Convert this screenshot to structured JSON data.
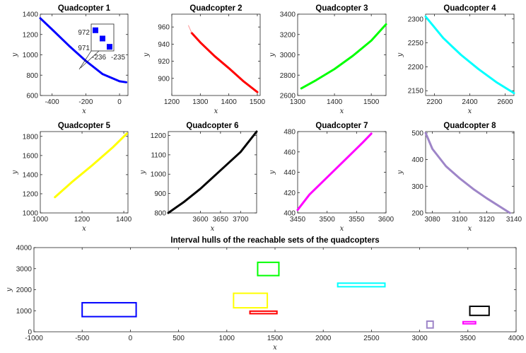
{
  "chart_data": [
    {
      "type": "line",
      "title": "Quadcopter 1",
      "xlabel": "x",
      "ylabel": "y",
      "xlim": [
        -470,
        50
      ],
      "ylim": [
        600,
        1400
      ],
      "xticks": [
        -400,
        -200,
        0
      ],
      "yticks": [
        600,
        800,
        1000,
        1200,
        1400
      ],
      "color": "#0000ff",
      "series": [
        {
          "x": [
            -470,
            -400,
            -300,
            -200,
            -100,
            0,
            40
          ],
          "y": [
            1360,
            1250,
            1090,
            940,
            810,
            740,
            730
          ]
        }
      ],
      "inset": {
        "xticks": [
          "-236",
          "-235"
        ],
        "yticks": [
          "972",
          "971"
        ],
        "points": [
          {
            "x": -236.2,
            "y": 972.3
          },
          {
            "x": -235.7,
            "y": 971.9
          },
          {
            "x": -235.2,
            "y": 971.5
          }
        ]
      }
    },
    {
      "type": "line",
      "title": "Quadcopter 2",
      "xlabel": "x",
      "ylabel": "y",
      "xlim": [
        1200,
        1510
      ],
      "ylim": [
        880,
        975
      ],
      "xticks": [
        1200,
        1300,
        1400,
        1500
      ],
      "yticks": [
        900,
        920,
        940,
        960
      ],
      "color": "#ff0000",
      "series": [
        {
          "x": [
            1270,
            1300,
            1350,
            1400,
            1450,
            1500
          ],
          "y": [
            953,
            942,
            926,
            912,
            897,
            884
          ]
        }
      ]
    },
    {
      "type": "line",
      "title": "Quadcopter 3",
      "xlabel": "x",
      "ylabel": "y",
      "xlim": [
        1300,
        1540
      ],
      "ylim": [
        2600,
        3400
      ],
      "xticks": [
        1300,
        1400,
        1500
      ],
      "yticks": [
        2600,
        2800,
        3000,
        3200,
        3400
      ],
      "color": "#00ff00",
      "series": [
        {
          "x": [
            1310,
            1350,
            1400,
            1450,
            1500,
            1540
          ],
          "y": [
            2670,
            2750,
            2860,
            2990,
            3140,
            3300
          ]
        }
      ]
    },
    {
      "type": "line",
      "title": "Quadcopter 4",
      "xlabel": "x",
      "ylabel": "y",
      "xlim": [
        2150,
        2650
      ],
      "ylim": [
        2140,
        2310
      ],
      "xticks": [
        2200,
        2400,
        2600
      ],
      "yticks": [
        2150,
        2200,
        2250,
        2300
      ],
      "color": "#00ffff",
      "series": [
        {
          "x": [
            2150,
            2250,
            2350,
            2450,
            2550,
            2650
          ],
          "y": [
            2305,
            2260,
            2225,
            2195,
            2168,
            2145
          ]
        }
      ]
    },
    {
      "type": "line",
      "title": "Quadcopter 5",
      "xlabel": "x",
      "ylabel": "y",
      "xlim": [
        1000,
        1420
      ],
      "ylim": [
        1000,
        1850
      ],
      "xticks": [
        1000,
        1200,
        1400
      ],
      "yticks": [
        1000,
        1200,
        1400,
        1600,
        1800
      ],
      "color": "#ffff00",
      "series": [
        {
          "x": [
            1070,
            1150,
            1250,
            1350,
            1415
          ],
          "y": [
            1165,
            1320,
            1500,
            1690,
            1830
          ]
        }
      ]
    },
    {
      "type": "line",
      "title": "Quadcopter 6",
      "xlabel": "x",
      "ylabel": "y",
      "xlim": [
        3520,
        3740
      ],
      "ylim": [
        800,
        1220
      ],
      "xticks": [
        3600,
        3650,
        3700
      ],
      "yticks": [
        800,
        900,
        1000,
        1100,
        1200
      ],
      "color": "#000000",
      "series": [
        {
          "x": [
            3520,
            3560,
            3600,
            3650,
            3700,
            3740
          ],
          "y": [
            800,
            858,
            925,
            1020,
            1115,
            1220
          ]
        }
      ]
    },
    {
      "type": "line",
      "title": "Quadcopter 7",
      "xlabel": "x",
      "ylabel": "y",
      "xlim": [
        3450,
        3600
      ],
      "ylim": [
        400,
        480
      ],
      "xticks": [
        3450,
        3500,
        3550,
        3600
      ],
      "yticks": [
        400,
        420,
        440,
        460,
        480
      ],
      "color": "#ff00ff",
      "series": [
        {
          "x": [
            3450,
            3470,
            3500,
            3530,
            3560,
            3575
          ],
          "y": [
            403,
            418,
            435,
            452,
            469,
            478
          ]
        }
      ]
    },
    {
      "type": "line",
      "title": "Quadcopter 8",
      "xlabel": "x",
      "ylabel": "y",
      "xlim": [
        3075,
        3140
      ],
      "ylim": [
        200,
        505
      ],
      "xticks": [
        3080,
        3100,
        3120,
        3140
      ],
      "yticks": [
        200,
        300,
        400,
        500
      ],
      "color": "#9e85c8",
      "series": [
        {
          "x": [
            3075,
            3080,
            3090,
            3100,
            3110,
            3120,
            3137
          ],
          "y": [
            500,
            440,
            375,
            330,
            290,
            255,
            200
          ]
        }
      ]
    },
    {
      "type": "rectangles",
      "title": "Interval hulls of the reachable sets of the quadcopters",
      "xlabel": "x",
      "ylabel": "y",
      "xlim": [
        -1000,
        4000
      ],
      "ylim": [
        0,
        4000
      ],
      "xticks": [
        -1000,
        -500,
        0,
        500,
        1000,
        1500,
        2000,
        2500,
        3000,
        3500,
        4000
      ],
      "yticks": [
        0,
        1000,
        2000,
        3000,
        4000
      ],
      "rects": [
        {
          "xmin": -500,
          "xmax": 60,
          "ymin": 720,
          "ymax": 1380,
          "color": "#0000ff"
        },
        {
          "xmin": 1240,
          "xmax": 1520,
          "ymin": 860,
          "ymax": 980,
          "color": "#ff0000"
        },
        {
          "xmin": 1320,
          "xmax": 1540,
          "ymin": 2670,
          "ymax": 3300,
          "color": "#00ff00"
        },
        {
          "xmin": 2150,
          "xmax": 2640,
          "ymin": 2140,
          "ymax": 2310,
          "color": "#00ffff"
        },
        {
          "xmin": 1070,
          "xmax": 1420,
          "ymin": 1140,
          "ymax": 1830,
          "color": "#ffff00"
        },
        {
          "xmin": 3520,
          "xmax": 3720,
          "ymin": 780,
          "ymax": 1210,
          "color": "#000000"
        },
        {
          "xmin": 3450,
          "xmax": 3580,
          "ymin": 380,
          "ymax": 480,
          "color": "#ff00ff"
        },
        {
          "xmin": 3075,
          "xmax": 3140,
          "ymin": 180,
          "ymax": 505,
          "color": "#9e85c8"
        }
      ]
    }
  ]
}
